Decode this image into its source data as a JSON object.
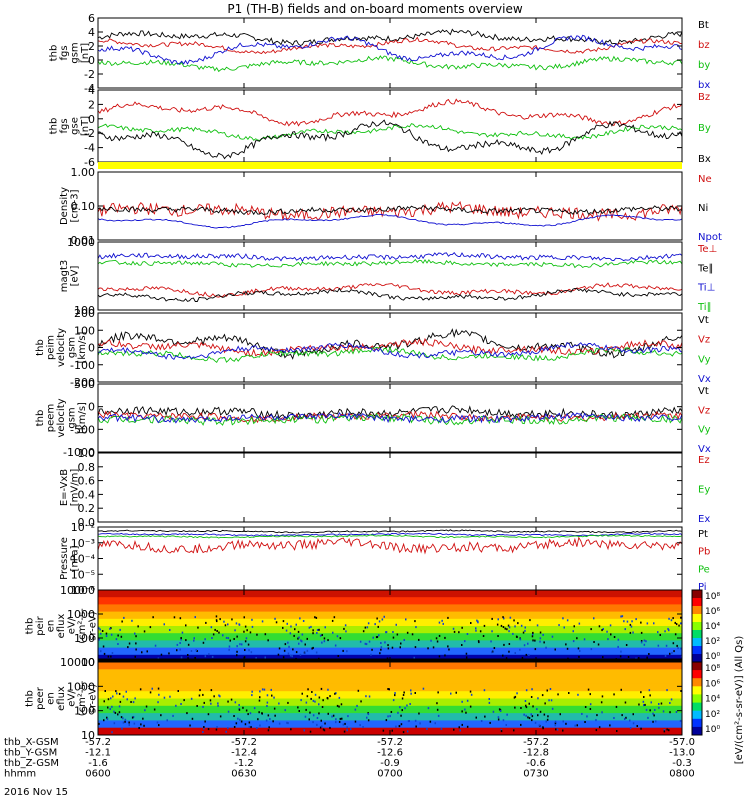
{
  "title": "P1 (TH-B) fields and on-board moments overview",
  "date_label": "2016 Nov 15",
  "colors": {
    "black": "#000000",
    "red": "#d01010",
    "green": "#10c010",
    "blue": "#1010d0",
    "yellow": "#ffff00"
  },
  "chart_data": {
    "type": "line",
    "time_ticks": [
      "0600",
      "0630",
      "0700",
      "0730",
      "0800"
    ],
    "orbit_rows": [
      {
        "label": "thb_X-GSM",
        "values": [
          "-57.2",
          "-57.2",
          "-57.2",
          "-57.2",
          "-57.0"
        ]
      },
      {
        "label": "thb_Y-GSM",
        "values": [
          "-12.1",
          "-12.4",
          "-12.6",
          "-12.8",
          "-13.0"
        ]
      },
      {
        "label": "thb_Z-GSM",
        "values": [
          "-1.6",
          "-1.2",
          "-0.9",
          "-0.6",
          "-0.3"
        ]
      },
      {
        "label": "hhmm",
        "values": [
          "0600",
          "0630",
          "0700",
          "0730",
          "0800"
        ]
      }
    ],
    "panels": [
      {
        "id": "fgs_gsm",
        "ylabel_lines": [
          "thb",
          "fgs",
          "gsm",
          "[nT]"
        ],
        "ticks": [
          "6",
          "4",
          "2",
          "0",
          "-2",
          "-4"
        ],
        "ylim": [
          -4,
          6
        ],
        "legend": [
          {
            "name": "Bt",
            "color": "black"
          },
          {
            "name": "bz",
            "color": "red"
          },
          {
            "name": "by",
            "color": "green"
          },
          {
            "name": "bx",
            "color": "blue"
          }
        ]
      },
      {
        "id": "fgs_gse",
        "ylabel_lines": [
          "thb",
          "fgs",
          "gse",
          "[nT]"
        ],
        "ticks": [
          "4",
          "2",
          "0",
          "-2",
          "-4",
          "-6"
        ],
        "ylim": [
          -6,
          4
        ],
        "legend": [
          {
            "name": "Bz",
            "color": "red"
          },
          {
            "name": "By",
            "color": "green"
          },
          {
            "name": "Bx",
            "color": "black"
          }
        ]
      },
      {
        "id": "density",
        "ylabel_lines": [
          "Density",
          "[cm-3]"
        ],
        "ticks": [
          "1.00",
          "0.10",
          "0.01"
        ],
        "ylim": [
          0.01,
          1.0
        ],
        "log": true,
        "legend": [
          {
            "name": "Ne",
            "color": "red"
          },
          {
            "name": "Ni",
            "color": "black"
          },
          {
            "name": "Npot",
            "color": "blue"
          }
        ]
      },
      {
        "id": "temp",
        "ylabel_lines": [
          "magt3",
          "[eV]"
        ],
        "ticks": [
          "1000",
          "100"
        ],
        "ylim": [
          100,
          10000
        ],
        "log": true,
        "legend": [
          {
            "name": "Te⊥",
            "color": "red"
          },
          {
            "name": "Te∥",
            "color": "black"
          },
          {
            "name": "Ti⊥",
            "color": "blue"
          },
          {
            "name": "Ti∥",
            "color": "green"
          }
        ]
      },
      {
        "id": "peim_v",
        "ylabel_lines": [
          "thb",
          "peim",
          "velocity",
          "gsm",
          "[km/s]"
        ],
        "ticks": [
          "200",
          "100",
          "0",
          "-100",
          "-200"
        ],
        "ylim": [
          -200,
          200
        ],
        "legend": [
          {
            "name": "Vt",
            "color": "black"
          },
          {
            "name": "Vz",
            "color": "red"
          },
          {
            "name": "Vy",
            "color": "green"
          },
          {
            "name": "Vx",
            "color": "blue"
          }
        ]
      },
      {
        "id": "peem_v",
        "ylabel_lines": [
          "thb",
          "peem",
          "velocity",
          "gsm",
          "[km/s]"
        ],
        "ticks": [
          "500",
          "0",
          "-500",
          "-1000"
        ],
        "ylim": [
          -1000,
          1000
        ],
        "legend": [
          {
            "name": "Vt",
            "color": "black"
          },
          {
            "name": "Vz",
            "color": "red"
          },
          {
            "name": "Vy",
            "color": "green"
          },
          {
            "name": "Vx",
            "color": "blue"
          }
        ]
      },
      {
        "id": "efield",
        "ylabel_lines": [
          "E=-VxB",
          "[mV/m]"
        ],
        "ticks": [
          "1.0",
          "0.8",
          "0.6",
          "0.4",
          "0.2",
          "0.0"
        ],
        "ylim": [
          0,
          1
        ],
        "legend": [
          {
            "name": "Ez",
            "color": "red"
          },
          {
            "name": "Ey",
            "color": "green"
          },
          {
            "name": "Ex",
            "color": "blue"
          }
        ]
      },
      {
        "id": "pressure",
        "ylabel_lines": [
          "Pressure",
          "[nPa]"
        ],
        "ticks": [
          "10⁻²",
          "10⁻³",
          "10⁻⁴",
          "10⁻⁵",
          "10⁻⁶"
        ],
        "ylim": [
          1e-06,
          0.1
        ],
        "log": true,
        "legend": [
          {
            "name": "Pt",
            "color": "black"
          },
          {
            "name": "Pb",
            "color": "red"
          },
          {
            "name": "Pe",
            "color": "green"
          },
          {
            "name": "Pi",
            "color": "blue"
          }
        ]
      },
      {
        "id": "peir",
        "type": "heatmap",
        "ylabel_lines": [
          "thb",
          "peir",
          "en",
          "eflux",
          "eV/",
          "(cm²-s-",
          "sr-eV)"
        ],
        "ticks": [
          "10000",
          "1000",
          "100",
          "10"
        ]
      },
      {
        "id": "peer",
        "type": "heatmap",
        "ylabel_lines": [
          "thb",
          "peer",
          "en",
          "eflux",
          "eV/",
          "(cm²-s-",
          "sr-eV)"
        ],
        "ticks": [
          "10000",
          "1000",
          "100",
          "10"
        ]
      }
    ],
    "colorbar": {
      "ticks": [
        "10⁸",
        "10⁶",
        "10⁴",
        "10²",
        "10⁰",
        "10⁸",
        "10⁶",
        "10⁴",
        "10²",
        "10⁰"
      ],
      "label": "[eV/(cm²-s-sr-eV)] (All Qs)"
    }
  }
}
